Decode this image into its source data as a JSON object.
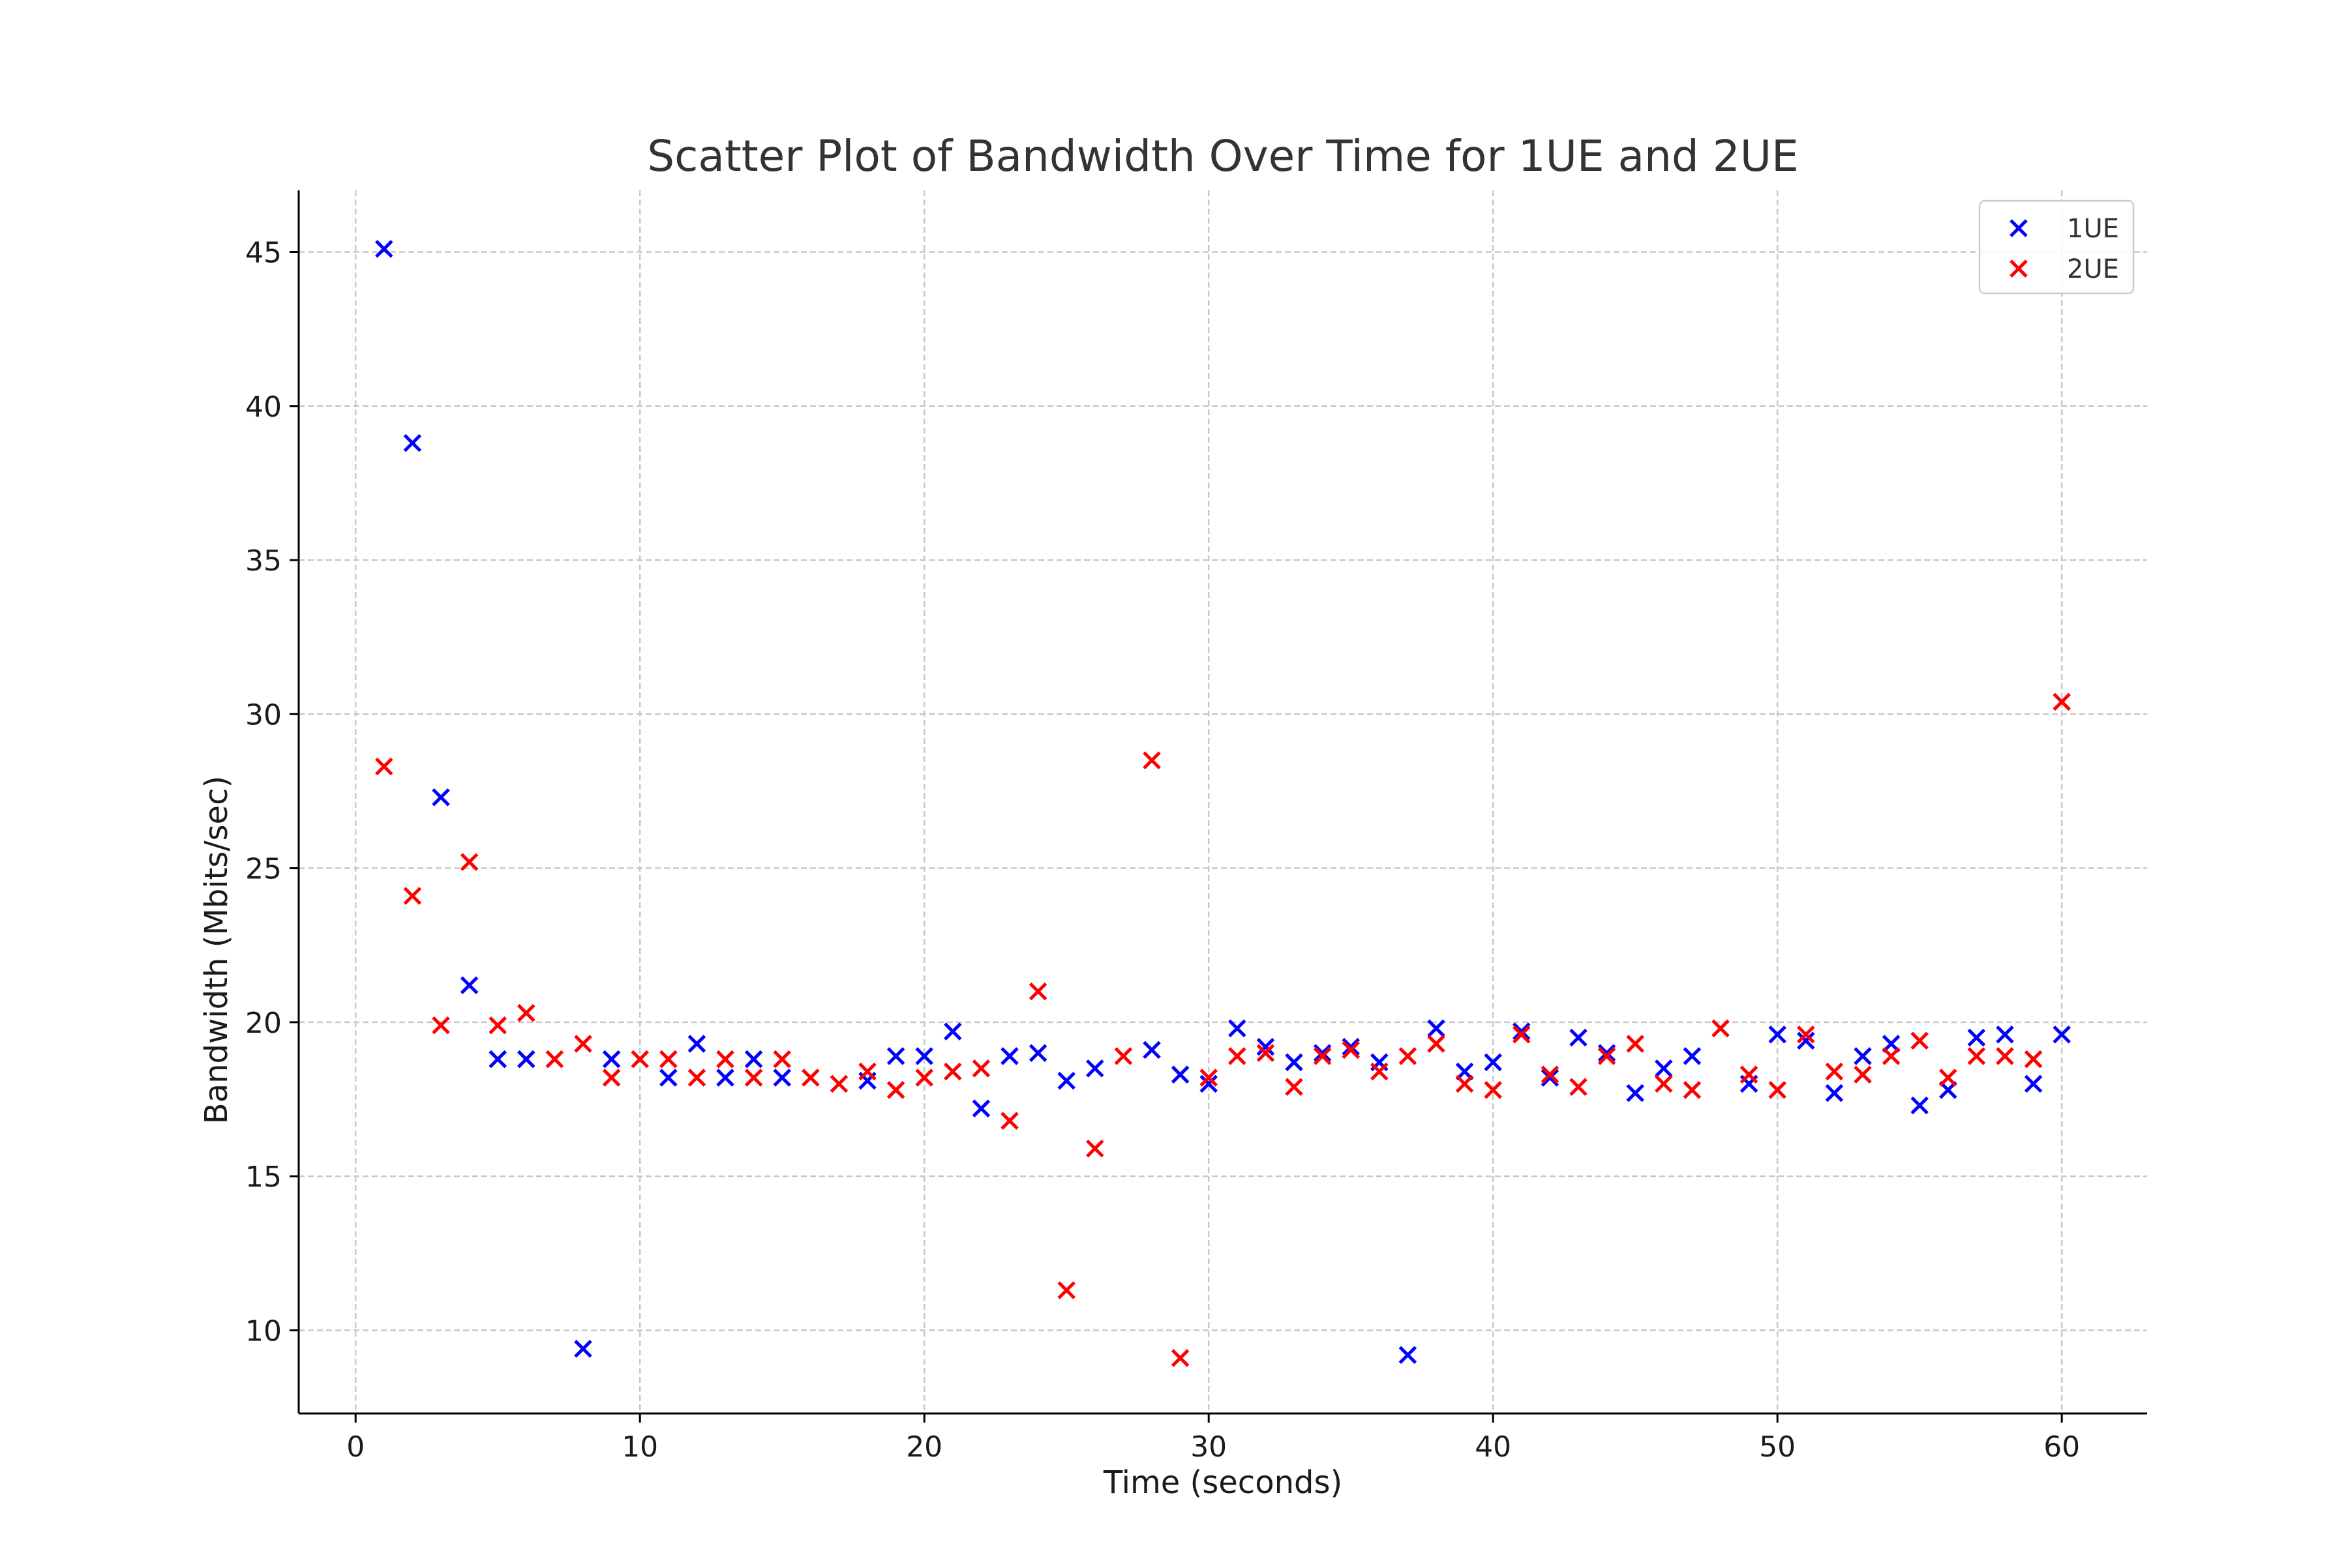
{
  "chart_data": {
    "type": "scatter",
    "title": "Scatter Plot of Bandwidth Over Time for 1UE and 2UE",
    "xlabel": "Time (seconds)",
    "ylabel": "Bandwidth (Mbits/sec)",
    "xlim": [
      -2,
      63
    ],
    "ylim": [
      7.3,
      47
    ],
    "xticks": [
      0,
      10,
      20,
      30,
      40,
      50,
      60
    ],
    "yticks": [
      10,
      15,
      20,
      25,
      30,
      35,
      40,
      45
    ],
    "grid": true,
    "grid_style": "dashed",
    "marker": "x",
    "legend_position": "top-right",
    "series": [
      {
        "name": "1UE",
        "color": "#0000ff",
        "x": [
          1,
          2,
          3,
          4,
          5,
          6,
          8,
          9,
          11,
          12,
          13,
          14,
          15,
          18,
          19,
          20,
          21,
          22,
          23,
          24,
          25,
          26,
          28,
          29,
          30,
          31,
          32,
          33,
          34,
          35,
          36,
          37,
          38,
          39,
          40,
          41,
          42,
          43,
          44,
          45,
          46,
          47,
          49,
          50,
          51,
          52,
          53,
          54,
          55,
          56,
          57,
          58,
          59,
          60
        ],
        "y": [
          45.1,
          38.8,
          27.3,
          21.2,
          18.8,
          18.8,
          9.4,
          18.8,
          18.2,
          19.3,
          18.2,
          18.8,
          18.2,
          18.1,
          18.9,
          18.9,
          19.7,
          17.2,
          18.9,
          19.0,
          18.1,
          18.5,
          19.1,
          18.3,
          18.0,
          19.8,
          19.2,
          18.7,
          19.0,
          19.2,
          18.7,
          9.2,
          19.8,
          18.4,
          18.7,
          19.7,
          18.2,
          19.5,
          19.0,
          17.7,
          18.5,
          18.9,
          18.0,
          19.6,
          19.4,
          17.7,
          18.9,
          19.3,
          17.3,
          17.8,
          19.5,
          19.6,
          18.0,
          19.6
        ]
      },
      {
        "name": "2UE",
        "color": "#ff0000",
        "x": [
          1,
          2,
          3,
          4,
          5,
          6,
          7,
          8,
          9,
          10,
          11,
          12,
          13,
          14,
          15,
          16,
          17,
          18,
          19,
          20,
          21,
          22,
          23,
          24,
          25,
          26,
          27,
          28,
          29,
          30,
          31,
          32,
          33,
          34,
          35,
          36,
          37,
          38,
          39,
          40,
          41,
          42,
          43,
          44,
          45,
          46,
          47,
          48,
          49,
          50,
          51,
          52,
          53,
          54,
          55,
          56,
          57,
          58,
          59,
          60
        ],
        "y": [
          28.3,
          24.1,
          19.9,
          25.2,
          19.9,
          20.3,
          18.8,
          19.3,
          18.2,
          18.8,
          18.8,
          18.2,
          18.8,
          18.2,
          18.8,
          18.2,
          18.0,
          18.4,
          17.8,
          18.2,
          18.4,
          18.5,
          16.8,
          21.0,
          11.3,
          15.9,
          18.9,
          28.5,
          9.1,
          18.2,
          18.9,
          19.0,
          17.9,
          18.9,
          19.1,
          18.4,
          18.9,
          19.3,
          18.0,
          17.8,
          19.6,
          18.3,
          17.9,
          18.9,
          19.3,
          18.0,
          17.8,
          19.8,
          18.3,
          17.8,
          19.6,
          18.4,
          18.3,
          18.9,
          19.4,
          18.2,
          18.9,
          18.9,
          18.8,
          30.4
        ]
      }
    ]
  }
}
